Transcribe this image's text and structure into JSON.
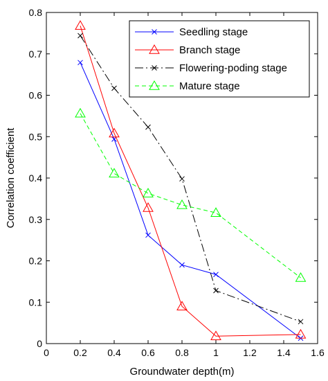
{
  "chart_data": {
    "type": "line",
    "title": "",
    "xlabel": "Groundwater depth(m)",
    "ylabel": "Correlation coefficient",
    "xlim": [
      0,
      1.6
    ],
    "ylim": [
      0,
      0.8
    ],
    "xticks": [
      "0",
      "0.2",
      "0.4",
      "0.6",
      "0.8",
      "1",
      "1.2",
      "1.4",
      "1.6"
    ],
    "yticks": [
      "0",
      "0.1",
      "0.2",
      "0.3",
      "0.4",
      "0.5",
      "0.6",
      "0.7",
      "0.8"
    ],
    "grid": false,
    "legend_position": "top-right",
    "x": [
      0.2,
      0.4,
      0.6,
      0.8,
      1.0,
      1.5
    ],
    "series": [
      {
        "name": "Seedling stage",
        "values": [
          0.679,
          0.494,
          0.262,
          0.19,
          0.167,
          0.013
        ],
        "color": "#0000ff",
        "marker": "x",
        "dash": "solid"
      },
      {
        "name": "Branch stage",
        "values": [
          0.768,
          0.508,
          0.328,
          0.09,
          0.018,
          0.022
        ],
        "color": "#ff0000",
        "marker": "triangle",
        "dash": "solid"
      },
      {
        "name": "Flowering-poding stage",
        "values": [
          0.744,
          0.617,
          0.523,
          0.398,
          0.128,
          0.053
        ],
        "color": "#000000",
        "marker": "x",
        "dash": "dashdot"
      },
      {
        "name": "Mature stage",
        "values": [
          0.556,
          0.411,
          0.363,
          0.335,
          0.316,
          0.159
        ],
        "color": "#00ff00",
        "marker": "triangle",
        "dash": "dashed"
      }
    ]
  }
}
